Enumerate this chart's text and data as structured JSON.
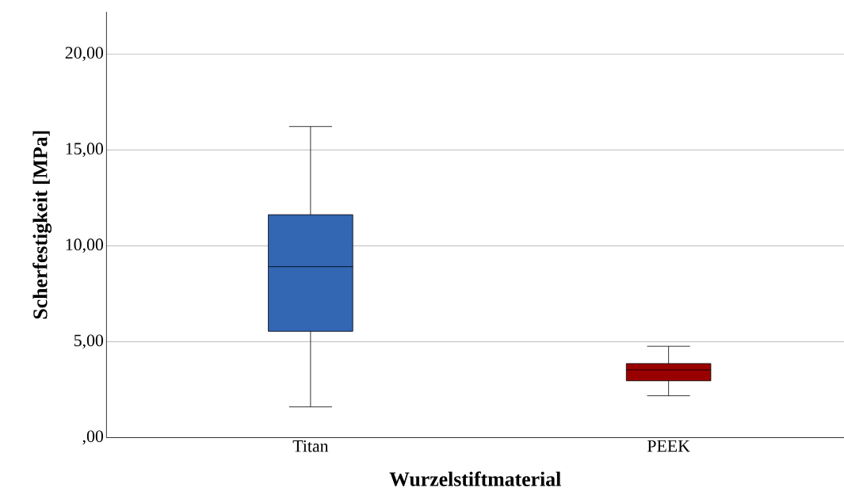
{
  "chart_data": {
    "type": "box",
    "xlabel": "Wurzelstiftmaterial",
    "ylabel": "Scherfestigkeit [MPa]",
    "categories": [
      "Titan",
      "PEEK"
    ],
    "boxes": [
      {
        "low": 1.6,
        "q1": 5.54,
        "median": 8.91,
        "q3": 11.62,
        "high": 16.22
      },
      {
        "low": 2.18,
        "q1": 2.96,
        "median": 3.53,
        "q3": 3.86,
        "high": 4.76
      }
    ],
    "colors": [
      "#3366b3",
      "#990000"
    ],
    "ylim": [
      0,
      22.2
    ],
    "yticks": [
      {
        "value": 0,
        "label": ",00"
      },
      {
        "value": 5,
        "label": "5,00"
      },
      {
        "value": 10,
        "label": "10,00"
      },
      {
        "value": 15,
        "label": "15,00"
      },
      {
        "value": 20,
        "label": "20,00"
      }
    ],
    "grid": "y"
  }
}
